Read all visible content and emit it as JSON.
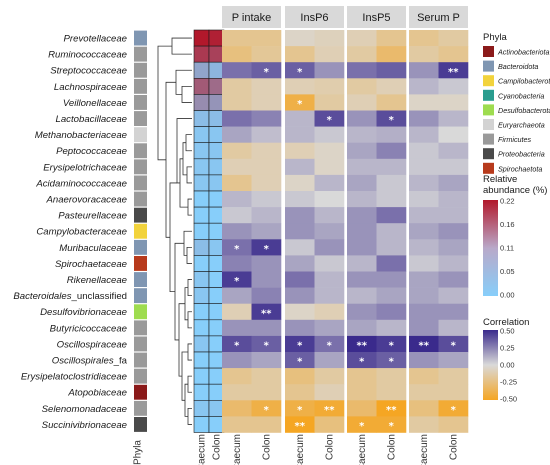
{
  "chart_data": {
    "type": "heatmap",
    "row_labels": [
      {
        "name": "Prevotellaceae",
        "phylum": "Bacteroidota"
      },
      {
        "name": "Ruminococcaceae",
        "phylum": "Firmicutes"
      },
      {
        "name": "Streptococcaceae",
        "phylum": "Firmicutes"
      },
      {
        "name": "Lachnospiraceae",
        "phylum": "Firmicutes"
      },
      {
        "name": "Veillonellaceae",
        "phylum": "Firmicutes"
      },
      {
        "name": "Lactobacillaceae",
        "phylum": "Firmicutes"
      },
      {
        "name": "Methanobacteriaceae",
        "phylum": "Euryarchaeota"
      },
      {
        "name": "Peptococcaceae",
        "phylum": "Firmicutes"
      },
      {
        "name": "Erysipelotrichaceae",
        "phylum": "Firmicutes"
      },
      {
        "name": "Acidaminococcaceae",
        "phylum": "Firmicutes"
      },
      {
        "name": "Anaerovoracaceae",
        "phylum": "Firmicutes"
      },
      {
        "name": "Pasteurellaceae",
        "phylum": "Proteobacteria"
      },
      {
        "name": "Campylobacteraceae",
        "phylum": "Campilobacterota"
      },
      {
        "name": "Muribaculaceae",
        "phylum": "Bacteroidota"
      },
      {
        "name": "Spirochaetaceae",
        "phylum": "Spirochaetota"
      },
      {
        "name": "Rikenellaceae",
        "phylum": "Bacteroidota"
      },
      {
        "name": "Bacteroidales_unclassified",
        "phylum": "Bacteroidota"
      },
      {
        "name": "Desulfovibrionaceae",
        "phylum": "Desulfobacterota"
      },
      {
        "name": "Butyricicoccaceae",
        "phylum": "Firmicutes"
      },
      {
        "name": "Oscillospiraceae",
        "phylum": "Firmicutes"
      },
      {
        "name": "Oscillospirales_fa",
        "phylum": "Firmicutes"
      },
      {
        "name": "Erysipelatoclostridiaceae",
        "phylum": "Firmicutes"
      },
      {
        "name": "Atopobiaceae",
        "phylum": "Actinobacteriota"
      },
      {
        "name": "Selenomonadaceae",
        "phylum": "Firmicutes"
      },
      {
        "name": "Succinivibrionaceae",
        "phylum": "Proteobacteria"
      }
    ],
    "abundance_columns": [
      "Caecum",
      "Colon"
    ],
    "abundance_values": [
      [
        0.22,
        0.21
      ],
      [
        0.18,
        0.17
      ],
      [
        0.05,
        0.03
      ],
      [
        0.14,
        0.12
      ],
      [
        0.08,
        0.07
      ],
      [
        0.02,
        0.02
      ],
      [
        0.01,
        0.01
      ],
      [
        0.01,
        0.01
      ],
      [
        0.01,
        0.01
      ],
      [
        0.01,
        0.01
      ],
      [
        0.0,
        0.0
      ],
      [
        0.0,
        0.0
      ],
      [
        0.0,
        0.0
      ],
      [
        0.02,
        0.01
      ],
      [
        0.0,
        0.0
      ],
      [
        0.01,
        0.0
      ],
      [
        0.01,
        0.0
      ],
      [
        0.0,
        0.0
      ],
      [
        0.0,
        0.0
      ],
      [
        0.01,
        0.0
      ],
      [
        0.0,
        0.0
      ],
      [
        0.0,
        0.0
      ],
      [
        0.0,
        0.0
      ],
      [
        0.01,
        0.01
      ],
      [
        0.0,
        0.0
      ]
    ],
    "facets": [
      "P intake",
      "InsP6",
      "InsP5",
      "Serum P"
    ],
    "facet_columns": [
      "Caecum",
      "Colon"
    ],
    "correlations": [
      [
        [
          -0.2,
          -0.2
        ],
        [
          -0.05,
          -0.08
        ],
        [
          -0.1,
          -0.2
        ],
        [
          -0.2,
          -0.15
        ]
      ],
      [
        [
          -0.25,
          -0.18
        ],
        [
          -0.2,
          -0.1
        ],
        [
          -0.15,
          -0.3
        ],
        [
          -0.15,
          -0.2
        ]
      ],
      [
        [
          0.3,
          0.35
        ],
        [
          0.35,
          0.2
        ],
        [
          0.3,
          0.35
        ],
        [
          0.2,
          0.45
        ]
      ],
      [
        [
          -0.15,
          -0.1
        ],
        [
          -0.1,
          -0.12
        ],
        [
          -0.15,
          -0.1
        ],
        [
          0.1,
          0.05
        ]
      ],
      [
        [
          -0.15,
          -0.1
        ],
        [
          -0.4,
          -0.15
        ],
        [
          -0.1,
          -0.2
        ],
        [
          -0.05,
          -0.05
        ]
      ],
      [
        [
          0.3,
          0.25
        ],
        [
          0.1,
          0.4
        ],
        [
          0.2,
          0.4
        ],
        [
          0.2,
          0.1
        ]
      ],
      [
        [
          0.15,
          0.08
        ],
        [
          0.1,
          0.05
        ],
        [
          0.1,
          0.12
        ],
        [
          0.1,
          0.0
        ]
      ],
      [
        [
          -0.15,
          -0.1
        ],
        [
          -0.1,
          -0.05
        ],
        [
          0.15,
          0.25
        ],
        [
          0.05,
          0.1
        ]
      ],
      [
        [
          -0.1,
          -0.1
        ],
        [
          0.1,
          -0.05
        ],
        [
          0.1,
          0.1
        ],
        [
          0.05,
          0.05
        ]
      ],
      [
        [
          -0.2,
          -0.1
        ],
        [
          -0.05,
          0.1
        ],
        [
          0.15,
          0.05
        ],
        [
          0.1,
          0.15
        ]
      ],
      [
        [
          0.1,
          0.05
        ],
        [
          0.05,
          0.0
        ],
        [
          0.1,
          0.05
        ],
        [
          0.05,
          0.1
        ]
      ],
      [
        [
          0.05,
          0.1
        ],
        [
          0.2,
          0.1
        ],
        [
          0.2,
          0.3
        ],
        [
          0.1,
          0.1
        ]
      ],
      [
        [
          0.2,
          0.15
        ],
        [
          0.2,
          0.15
        ],
        [
          0.2,
          0.1
        ],
        [
          0.15,
          0.2
        ]
      ],
      [
        [
          0.3,
          0.45
        ],
        [
          0.05,
          0.2
        ],
        [
          0.2,
          0.1
        ],
        [
          0.1,
          0.15
        ]
      ],
      [
        [
          0.25,
          0.2
        ],
        [
          0.15,
          0.05
        ],
        [
          0.1,
          0.3
        ],
        [
          0.05,
          0.1
        ]
      ],
      [
        [
          0.45,
          0.2
        ],
        [
          0.3,
          0.1
        ],
        [
          0.2,
          0.2
        ],
        [
          0.15,
          0.2
        ]
      ],
      [
        [
          0.15,
          0.25
        ],
        [
          0.2,
          0.1
        ],
        [
          0.1,
          0.15
        ],
        [
          0.15,
          0.1
        ]
      ],
      [
        [
          -0.1,
          0.45
        ],
        [
          -0.05,
          -0.1
        ],
        [
          0.2,
          0.25
        ],
        [
          0.2,
          0.2
        ]
      ],
      [
        [
          0.2,
          0.2
        ],
        [
          0.2,
          0.15
        ],
        [
          0.15,
          0.1
        ],
        [
          0.2,
          0.1
        ]
      ],
      [
        [
          0.4,
          0.35
        ],
        [
          0.45,
          0.3
        ],
        [
          0.5,
          0.45
        ],
        [
          0.5,
          0.4
        ]
      ],
      [
        [
          0.2,
          0.15
        ],
        [
          0.35,
          0.15
        ],
        [
          0.4,
          0.35
        ],
        [
          0.2,
          0.15
        ]
      ],
      [
        [
          -0.2,
          -0.15
        ],
        [
          -0.25,
          -0.15
        ],
        [
          -0.2,
          -0.15
        ],
        [
          -0.2,
          -0.15
        ]
      ],
      [
        [
          -0.15,
          -0.15
        ],
        [
          -0.2,
          -0.1
        ],
        [
          -0.2,
          -0.15
        ],
        [
          -0.15,
          -0.15
        ]
      ],
      [
        [
          -0.3,
          -0.4
        ],
        [
          -0.4,
          -0.45
        ],
        [
          -0.3,
          -0.5
        ],
        [
          -0.25,
          -0.45
        ]
      ],
      [
        [
          -0.2,
          -0.2
        ],
        [
          -0.5,
          -0.25
        ],
        [
          -0.45,
          -0.45
        ],
        [
          -0.15,
          -0.2
        ]
      ]
    ],
    "significance": [
      [
        [
          "",
          ""
        ],
        [
          "",
          ""
        ],
        [
          "",
          ""
        ],
        [
          "",
          ""
        ]
      ],
      [
        [
          "",
          ""
        ],
        [
          "",
          ""
        ],
        [
          "",
          ""
        ],
        [
          "",
          ""
        ]
      ],
      [
        [
          "",
          "*"
        ],
        [
          "*",
          ""
        ],
        [
          "",
          ""
        ],
        [
          "",
          "**"
        ]
      ],
      [
        [
          "",
          ""
        ],
        [
          "",
          ""
        ],
        [
          "",
          ""
        ],
        [
          "",
          ""
        ]
      ],
      [
        [
          "",
          ""
        ],
        [
          "*",
          ""
        ],
        [
          "",
          ""
        ],
        [
          "",
          ""
        ]
      ],
      [
        [
          "",
          ""
        ],
        [
          "",
          "*"
        ],
        [
          "",
          "*"
        ],
        [
          "",
          ""
        ]
      ],
      [
        [
          "",
          ""
        ],
        [
          "",
          ""
        ],
        [
          "",
          ""
        ],
        [
          "",
          ""
        ]
      ],
      [
        [
          "",
          ""
        ],
        [
          "",
          ""
        ],
        [
          "",
          ""
        ],
        [
          "",
          ""
        ]
      ],
      [
        [
          "",
          ""
        ],
        [
          "",
          ""
        ],
        [
          "",
          ""
        ],
        [
          "",
          ""
        ]
      ],
      [
        [
          "",
          ""
        ],
        [
          "",
          ""
        ],
        [
          "",
          ""
        ],
        [
          "",
          ""
        ]
      ],
      [
        [
          "",
          ""
        ],
        [
          "",
          ""
        ],
        [
          "",
          ""
        ],
        [
          "",
          ""
        ]
      ],
      [
        [
          "",
          ""
        ],
        [
          "",
          ""
        ],
        [
          "",
          ""
        ],
        [
          "",
          ""
        ]
      ],
      [
        [
          "",
          ""
        ],
        [
          "",
          ""
        ],
        [
          "",
          ""
        ],
        [
          "",
          ""
        ]
      ],
      [
        [
          "*",
          "*"
        ],
        [
          "",
          ""
        ],
        [
          "",
          ""
        ],
        [
          "",
          ""
        ]
      ],
      [
        [
          "",
          ""
        ],
        [
          "",
          ""
        ],
        [
          "",
          ""
        ],
        [
          "",
          ""
        ]
      ],
      [
        [
          "*",
          ""
        ],
        [
          "",
          ""
        ],
        [
          "",
          ""
        ],
        [
          "",
          ""
        ]
      ],
      [
        [
          "",
          ""
        ],
        [
          "",
          ""
        ],
        [
          "",
          ""
        ],
        [
          "",
          ""
        ]
      ],
      [
        [
          "",
          "**"
        ],
        [
          "",
          ""
        ],
        [
          "",
          ""
        ],
        [
          "",
          ""
        ]
      ],
      [
        [
          "",
          ""
        ],
        [
          "",
          ""
        ],
        [
          "",
          ""
        ],
        [
          "",
          ""
        ]
      ],
      [
        [
          "*",
          "*"
        ],
        [
          "*",
          "*"
        ],
        [
          "**",
          "*"
        ],
        [
          "**",
          "*"
        ]
      ],
      [
        [
          "",
          ""
        ],
        [
          "*",
          ""
        ],
        [
          "*",
          "*"
        ],
        [
          "",
          ""
        ]
      ],
      [
        [
          "",
          ""
        ],
        [
          "",
          ""
        ],
        [
          "",
          ""
        ],
        [
          "",
          ""
        ]
      ],
      [
        [
          "",
          ""
        ],
        [
          "",
          ""
        ],
        [
          "",
          ""
        ],
        [
          "",
          ""
        ]
      ],
      [
        [
          "",
          "*"
        ],
        [
          "*",
          "**"
        ],
        [
          "",
          "**"
        ],
        [
          "",
          "*"
        ]
      ],
      [
        [
          "",
          ""
        ],
        [
          "**",
          ""
        ],
        [
          "*",
          "*"
        ],
        [
          "",
          ""
        ]
      ]
    ],
    "phyla_xlabel": "Phyla",
    "phyla_legend": {
      "title": "Phyla",
      "items": [
        {
          "name": "Actinobacteriota",
          "color": "#8b1a1a"
        },
        {
          "name": "Bacteroidota",
          "color": "#7f96b2"
        },
        {
          "name": "Campilobacterota",
          "color": "#f2d33c"
        },
        {
          "name": "Cyanobacteria",
          "color": "#2a9d8f"
        },
        {
          "name": "Desulfobacterota",
          "color": "#9edc4f"
        },
        {
          "name": "Euryarchaeota",
          "color": "#d3d3d3"
        },
        {
          "name": "Firmicutes",
          "color": "#9a9a9a"
        },
        {
          "name": "Proteobacteria",
          "color": "#4a4a4a"
        },
        {
          "name": "Spirochaetota",
          "color": "#b73a1c"
        }
      ]
    },
    "abundance_legend": {
      "title": "Relative abundance (%)",
      "ticks": [
        "0.22",
        "0.16",
        "0.11",
        "0.05",
        "0.00"
      ],
      "low_color": "#87cefa",
      "high_color": "#b2182b"
    },
    "correlation_legend": {
      "title": "Correlation",
      "ticks": [
        "0.50",
        "0.25",
        "0.00",
        "-0.25",
        "-0.50"
      ],
      "neg_color": "#f5a623",
      "mid_color": "#d9d9d9",
      "pos_color": "#3a2a8c"
    }
  }
}
